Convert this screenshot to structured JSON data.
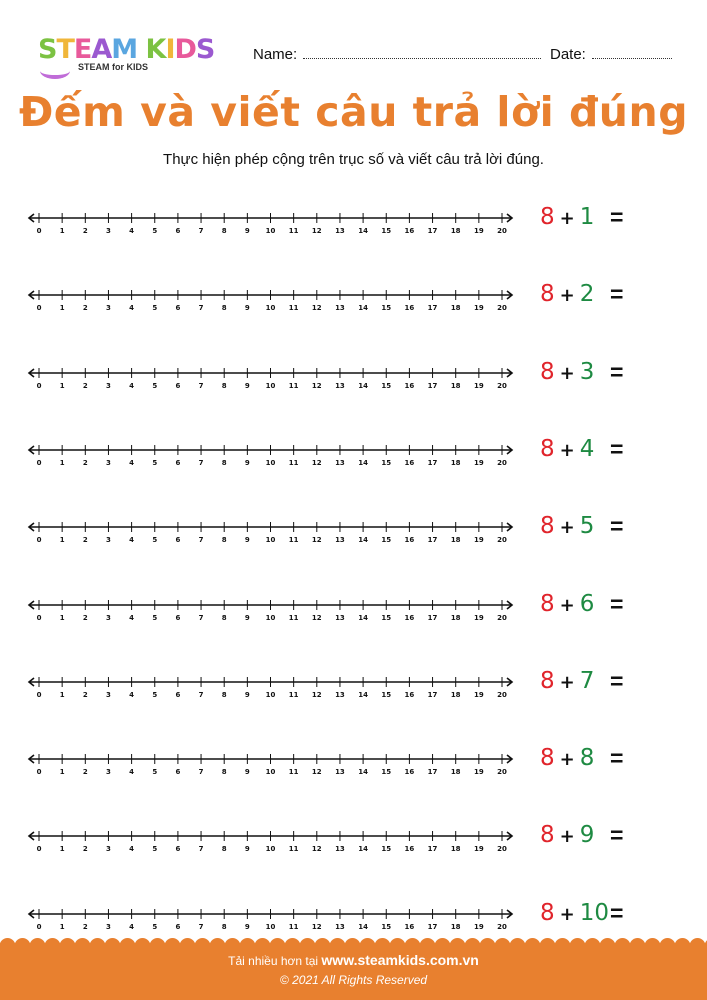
{
  "logo": {
    "text": "STEAM KIDS",
    "tagline": "STEAM for KIDS",
    "colors": [
      "#7cc242",
      "#f0b63a",
      "#e85a9b",
      "#9b59d0",
      "#5aa6e0",
      "#f08a3c"
    ]
  },
  "header": {
    "name_label": "Name:",
    "date_label": "Date:"
  },
  "title": "Đếm và viết câu trả lời đúng",
  "subtitle": "Thực hiện phép cộng trên trục số và viết câu trả lời đúng.",
  "number_line": {
    "ticks": [
      "0",
      "1",
      "2",
      "3",
      "4",
      "5",
      "6",
      "7",
      "8",
      "9",
      "10",
      "11",
      "12",
      "13",
      "14",
      "15",
      "16",
      "17",
      "18",
      "19",
      "20"
    ]
  },
  "problems": [
    {
      "a": "8",
      "op": "+",
      "b": "1",
      "eq": "="
    },
    {
      "a": "8",
      "op": "+",
      "b": "2",
      "eq": "="
    },
    {
      "a": "8",
      "op": "+",
      "b": "3",
      "eq": "="
    },
    {
      "a": "8",
      "op": "+",
      "b": "4",
      "eq": "="
    },
    {
      "a": "8",
      "op": "+",
      "b": "5",
      "eq": "="
    },
    {
      "a": "8",
      "op": "+",
      "b": "6",
      "eq": "="
    },
    {
      "a": "8",
      "op": "+",
      "b": "7",
      "eq": "="
    },
    {
      "a": "8",
      "op": "+",
      "b": "8",
      "eq": "="
    },
    {
      "a": "8",
      "op": "+",
      "b": "9",
      "eq": "="
    },
    {
      "a": "8",
      "op": "+",
      "b": "10",
      "eq": "="
    }
  ],
  "colors": {
    "accent": "#E8802F",
    "first_addend": "#e0242b",
    "second_addend": "#1e8a42"
  },
  "footer": {
    "prefix": "Tải nhiều hơn tại",
    "site": "www.steamkids.com.vn",
    "copyright": "© 2021 All Rights Reserved"
  }
}
